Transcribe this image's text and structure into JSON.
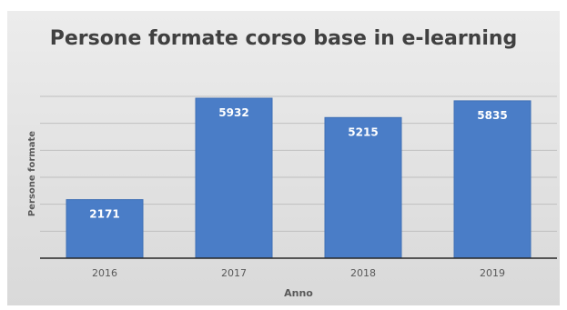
{
  "chart_data": {
    "type": "bar",
    "title": "Persone formate corso base in e-learning",
    "xlabel": "Anno",
    "ylabel": "Persone formate",
    "categories": [
      "2016",
      "2017",
      "2018",
      "2019"
    ],
    "values": [
      2171,
      5932,
      5215,
      5835
    ],
    "data_labels": [
      "2171",
      "5932",
      "5215",
      "5835"
    ],
    "ylim": [
      0,
      6000
    ],
    "grid": true,
    "legend": "none",
    "colors": {
      "bar": "#4a7dc7",
      "bar_edge": "#3f6fb5",
      "label": "#ffffff",
      "axis": "#595959"
    }
  }
}
